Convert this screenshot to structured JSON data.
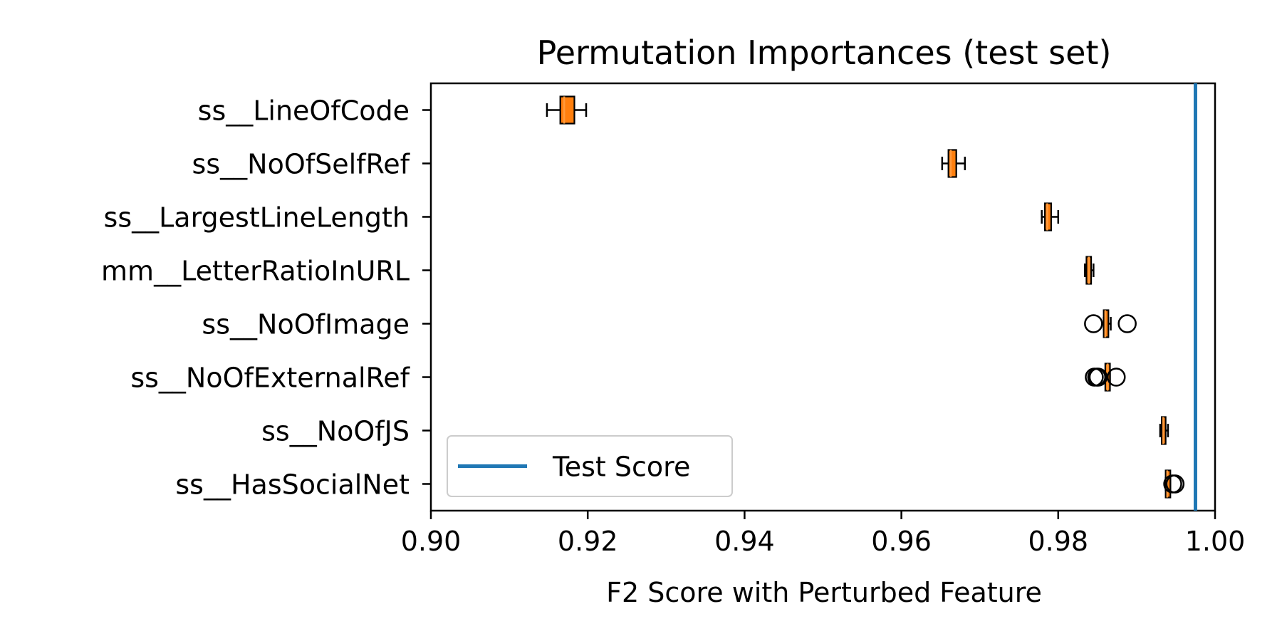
{
  "chart_data": {
    "type": "boxplot-horizontal",
    "title": "Permutation Importances (test set)",
    "xlabel": "F2 Score with Perturbed Feature",
    "ylabel": "",
    "xlim": [
      0.9,
      1.0
    ],
    "xticks": [
      0.9,
      0.92,
      0.94,
      0.96,
      0.98,
      1.0
    ],
    "xtick_labels": [
      "0.90",
      "0.92",
      "0.94",
      "0.96",
      "0.98",
      "1.00"
    ],
    "grid": false,
    "legend": {
      "placement": "lower-left",
      "entries": [
        "Test Score"
      ]
    },
    "reference_line": {
      "label": "Test Score",
      "value": 0.9975,
      "color": "#1f77b4"
    },
    "box_fill_color": "#ff7f0e",
    "features": [
      {
        "name": "ss__LineOfCode",
        "whisker_low": 0.9148,
        "q1": 0.9165,
        "median": 0.917,
        "q3": 0.9183,
        "whisker_high": 0.9198,
        "outliers": []
      },
      {
        "name": "ss__NoOfSelfRef",
        "whisker_low": 0.9652,
        "q1": 0.966,
        "median": 0.9663,
        "q3": 0.967,
        "whisker_high": 0.9681,
        "outliers": []
      },
      {
        "name": "ss__LargestLineLength",
        "whisker_low": 0.9779,
        "q1": 0.9783,
        "median": 0.9786,
        "q3": 0.9791,
        "whisker_high": 0.98,
        "outliers": []
      },
      {
        "name": "mm__LetterRatioInURL",
        "whisker_low": 0.9834,
        "q1": 0.9836,
        "median": 0.9839,
        "q3": 0.9842,
        "whisker_high": 0.9845,
        "outliers": []
      },
      {
        "name": "ss__NoOfImage",
        "whisker_low": 0.9858,
        "q1": 0.9858,
        "median": 0.986,
        "q3": 0.9864,
        "whisker_high": 0.9867,
        "outliers": [
          0.9845,
          0.9888
        ]
      },
      {
        "name": "ss__NoOfExternalRef",
        "whisker_low": 0.986,
        "q1": 0.986,
        "median": 0.9863,
        "q3": 0.9866,
        "whisker_high": 0.9866,
        "outliers": [
          0.9846,
          0.9849,
          0.9851,
          0.9874
        ]
      },
      {
        "name": "ss__NoOfJS",
        "whisker_low": 0.993,
        "q1": 0.9932,
        "median": 0.9934,
        "q3": 0.9937,
        "whisker_high": 0.994,
        "outliers": []
      },
      {
        "name": "ss__HasSocialNet",
        "whisker_low": 0.9937,
        "q1": 0.9937,
        "median": 0.9939,
        "q3": 0.9943,
        "whisker_high": 0.9943,
        "outliers": [
          0.9946,
          0.9949
        ]
      }
    ]
  }
}
